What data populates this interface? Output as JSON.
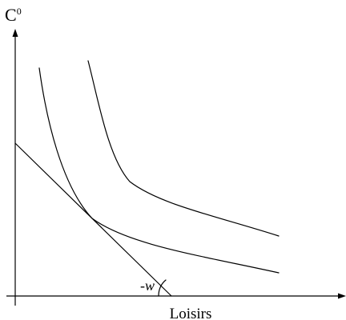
{
  "labels": {
    "y_axis": {
      "base": "C",
      "superscript": "0"
    },
    "x_axis": "Loisirs",
    "slope": "-w"
  },
  "elements": {
    "indifference_curves": [
      {
        "id": "lower"
      },
      {
        "id": "upper"
      }
    ],
    "budget_line": {
      "id": "budget"
    },
    "angle_mark": {
      "id": "slope-angle"
    }
  }
}
